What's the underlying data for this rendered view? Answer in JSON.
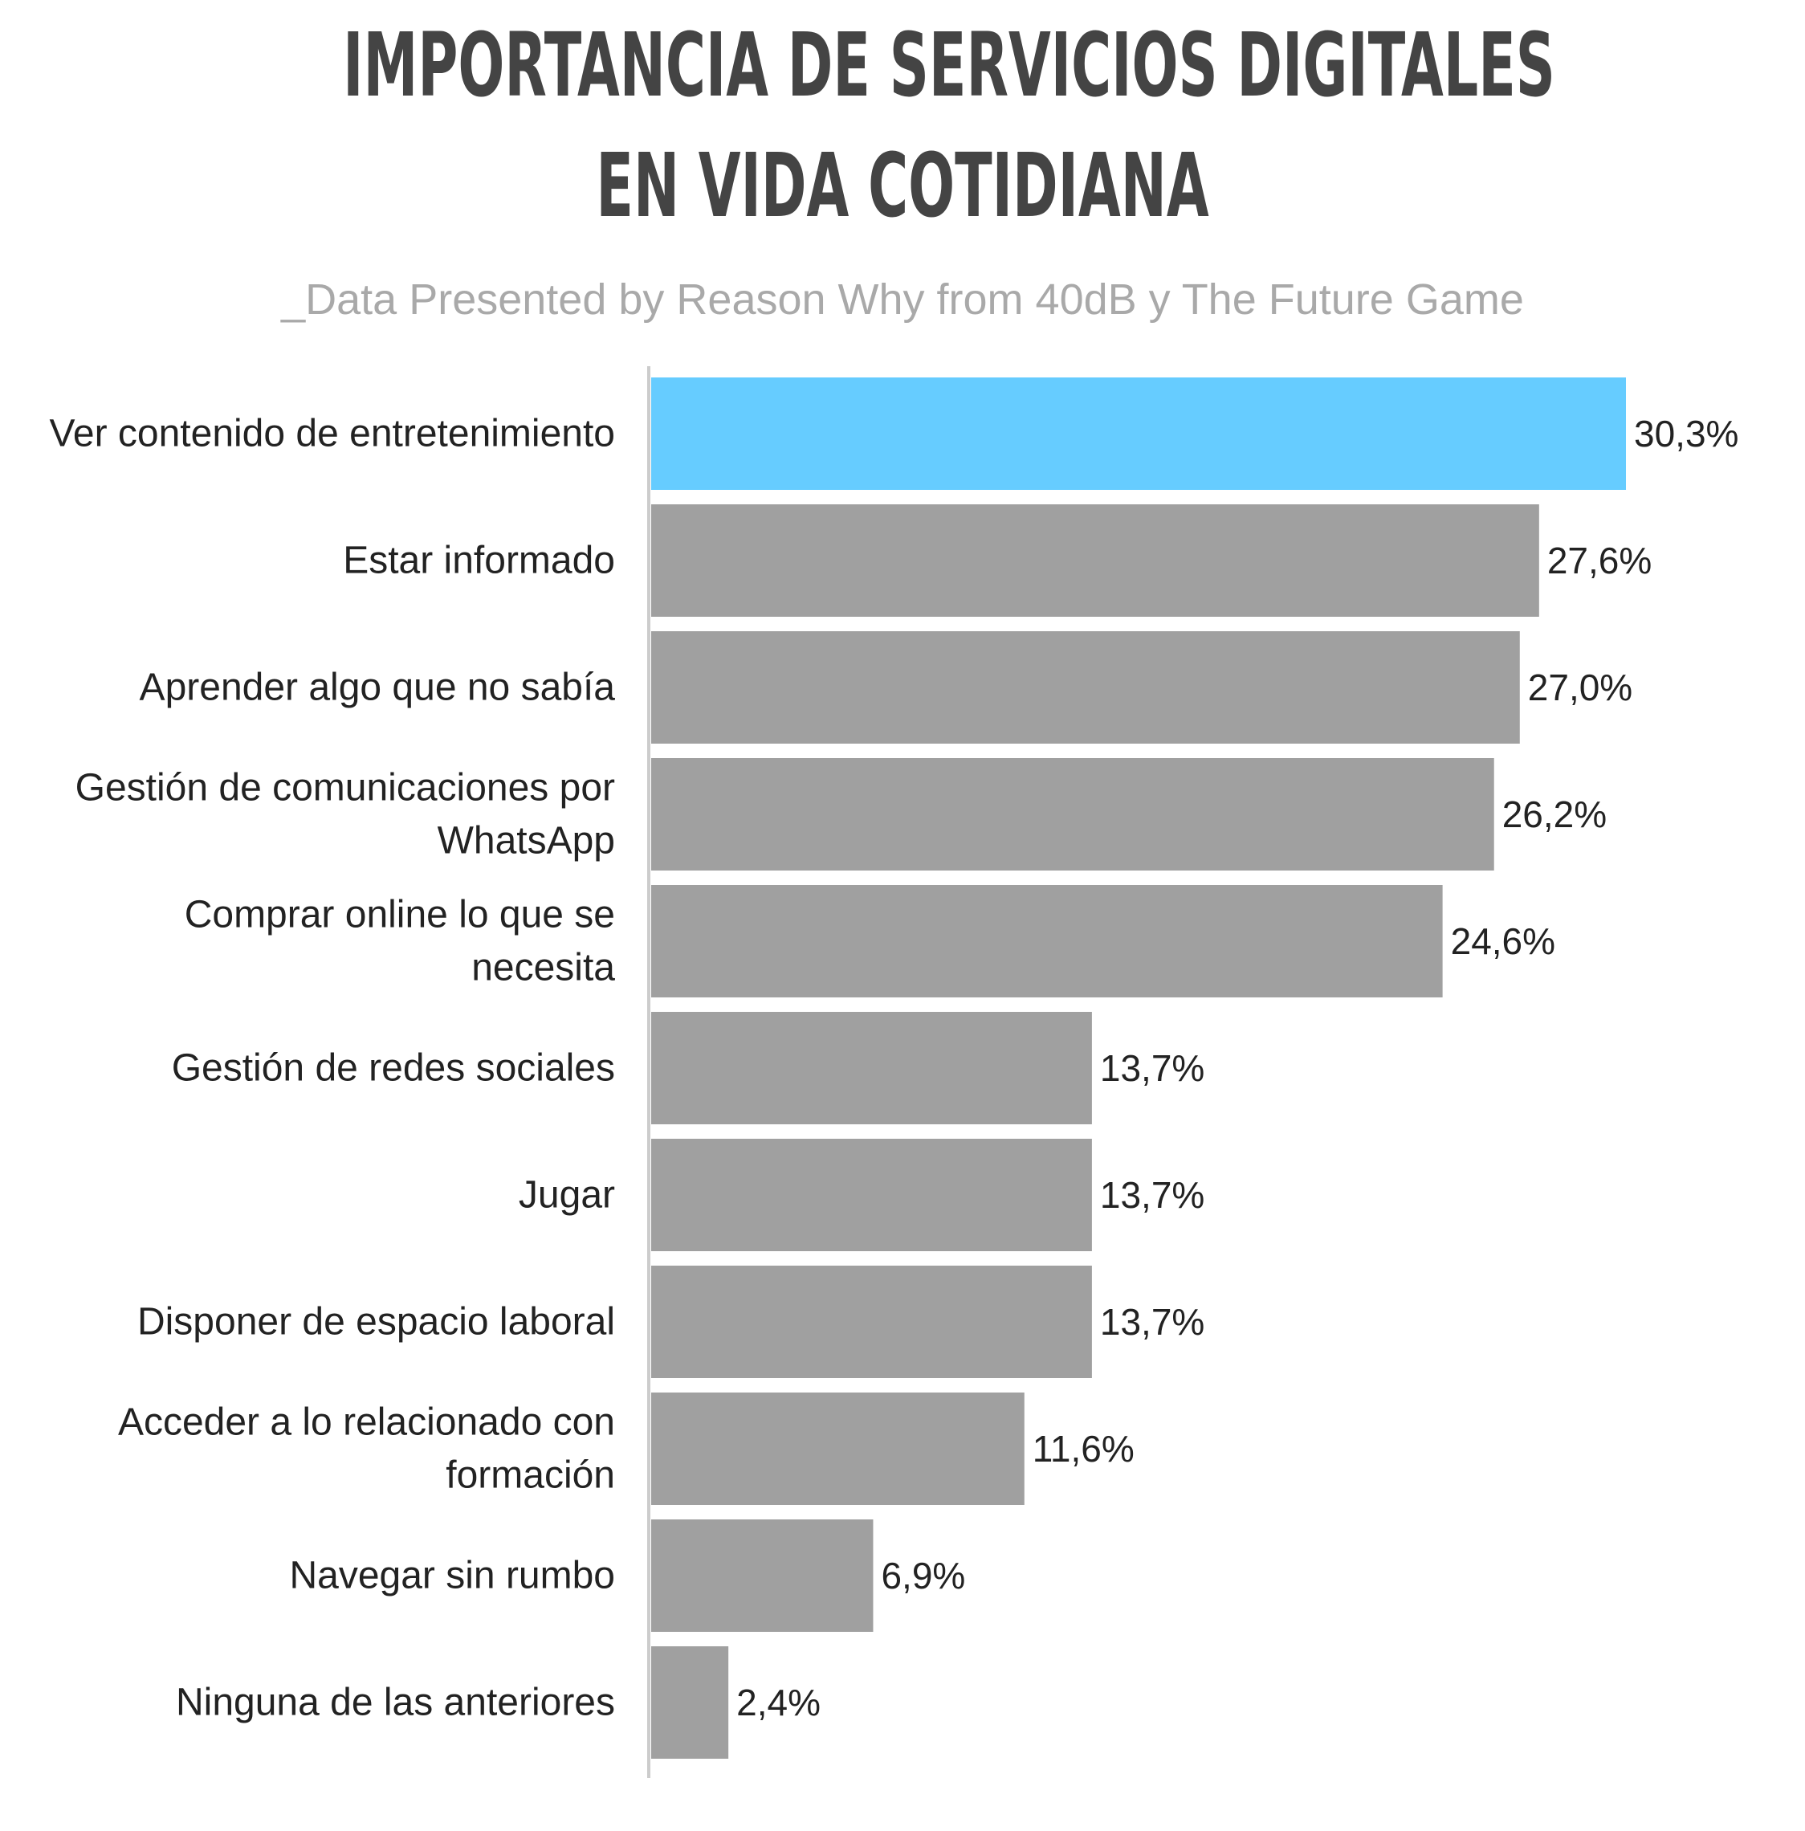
{
  "title": {
    "line1": "IMPORTANCIA DE SERVICIOS DIGITALES",
    "line2": "EN VIDA COTIDIANA"
  },
  "subtitle": "_Data Presented by Reason Why from 40dB y The Future Game",
  "colors": {
    "highlight": "#66ccff",
    "bar": "#a0a0a0",
    "axis": "#cccccc",
    "title": "#444444",
    "subtitle": "#a9a9a9",
    "text": "#222222"
  },
  "chart_data": {
    "type": "bar",
    "orientation": "horizontal",
    "categories": [
      [
        "Ver contenido de entretenimiento"
      ],
      [
        "Estar informado"
      ],
      [
        "Aprender algo que no sabía"
      ],
      [
        "Gestión de comunicaciones por",
        "WhatsApp"
      ],
      [
        "Comprar online lo que se",
        "necesita"
      ],
      [
        "Gestión de redes sociales"
      ],
      [
        "Jugar"
      ],
      [
        "Disponer de espacio laboral"
      ],
      [
        "Acceder a lo relacionado con",
        "formación"
      ],
      [
        "Navegar sin rumbo"
      ],
      [
        "Ninguna de las anteriores"
      ]
    ],
    "values": [
      30.3,
      27.6,
      27.0,
      26.2,
      24.6,
      13.7,
      13.7,
      13.7,
      11.6,
      6.9,
      2.4
    ],
    "value_labels": [
      "30,3%",
      "27,6%",
      "27,0%",
      "26,2%",
      "24,6%",
      "13,7%",
      "13,7%",
      "13,7%",
      "11,6%",
      "6,9%",
      "2,4%"
    ],
    "highlight_index": 0,
    "xlim": [
      0,
      33
    ],
    "grid": false
  }
}
